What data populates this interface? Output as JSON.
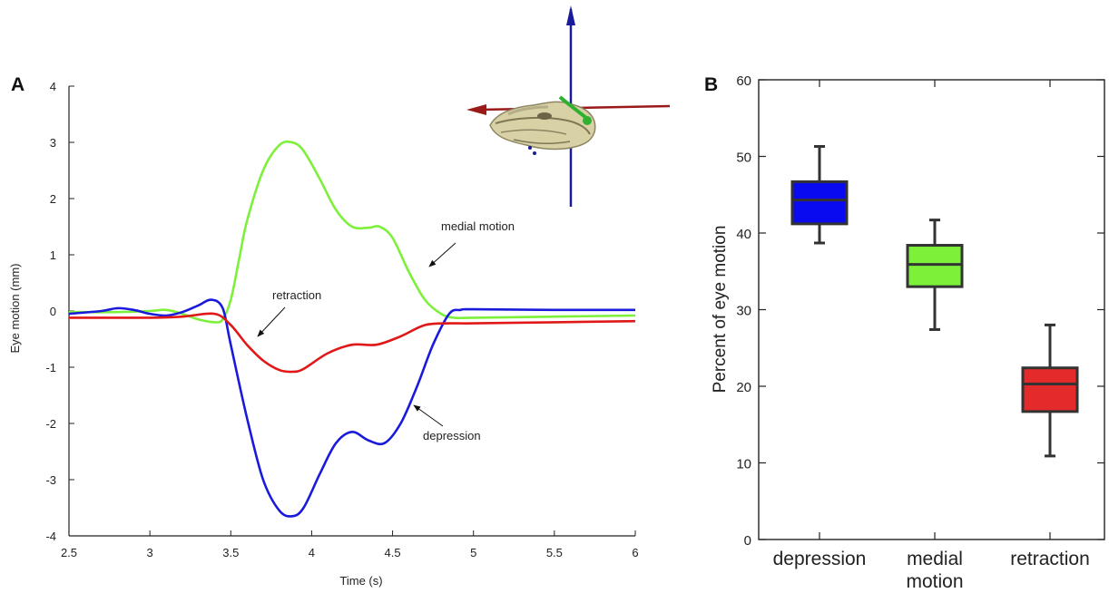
{
  "chart_data": [
    {
      "panel": "A",
      "type": "line",
      "xlabel": "Time (s)",
      "ylabel": "Eye motion (mm)",
      "xlim": [
        2.5,
        6
      ],
      "ylim": [
        -4,
        4
      ],
      "xticks": [
        "2.5",
        "3",
        "3.5",
        "4",
        "4.5",
        "5",
        "5.5",
        "6"
      ],
      "yticks": [
        "4",
        "3",
        "2",
        "1",
        "0",
        "-1",
        "-2",
        "-3",
        "-4"
      ],
      "series": [
        {
          "id": "medial",
          "color": "#7df03a",
          "x": [
            2.5,
            2.8,
            3.0,
            3.1,
            3.2,
            3.3,
            3.4,
            3.45,
            3.5,
            3.55,
            3.6,
            3.7,
            3.8,
            3.88,
            3.95,
            4.05,
            4.15,
            4.25,
            4.35,
            4.42,
            4.5,
            4.6,
            4.7,
            4.8,
            4.88,
            5.0,
            5.5,
            6.0
          ],
          "y": [
            -0.02,
            -0.02,
            0.0,
            0.02,
            -0.05,
            -0.15,
            -0.2,
            -0.15,
            0.2,
            0.9,
            1.6,
            2.5,
            2.95,
            3.0,
            2.85,
            2.35,
            1.8,
            1.5,
            1.48,
            1.5,
            1.3,
            0.7,
            0.2,
            -0.05,
            -0.12,
            -0.12,
            -0.1,
            -0.08
          ]
        },
        {
          "id": "depression",
          "color": "#1a1adc",
          "x": [
            2.5,
            2.7,
            2.8,
            2.9,
            3.0,
            3.1,
            3.2,
            3.3,
            3.38,
            3.45,
            3.5,
            3.6,
            3.7,
            3.8,
            3.88,
            3.95,
            4.05,
            4.15,
            4.25,
            4.35,
            4.45,
            4.55,
            4.65,
            4.75,
            4.85,
            4.92,
            5.0,
            5.5,
            6.0
          ],
          "y": [
            -0.05,
            0.0,
            0.05,
            0.02,
            -0.05,
            -0.08,
            -0.02,
            0.1,
            0.2,
            0.05,
            -0.6,
            -1.9,
            -3.0,
            -3.55,
            -3.65,
            -3.5,
            -2.9,
            -2.35,
            -2.15,
            -2.3,
            -2.35,
            -2.0,
            -1.35,
            -0.6,
            -0.05,
            0.02,
            0.03,
            0.02,
            0.02
          ]
        },
        {
          "id": "retraction",
          "color": "#e01818",
          "x": [
            2.5,
            3.0,
            3.2,
            3.4,
            3.5,
            3.6,
            3.7,
            3.8,
            3.88,
            3.95,
            4.1,
            4.25,
            4.4,
            4.55,
            4.7,
            4.85,
            5.0,
            5.5,
            6.0
          ],
          "y": [
            -0.12,
            -0.12,
            -0.1,
            -0.05,
            -0.25,
            -0.6,
            -0.88,
            -1.05,
            -1.08,
            -1.03,
            -0.75,
            -0.6,
            -0.6,
            -0.45,
            -0.25,
            -0.22,
            -0.22,
            -0.2,
            -0.18
          ]
        }
      ],
      "annotations": {
        "medial": "medial motion",
        "retraction": "retraction",
        "depression": "depression"
      }
    },
    {
      "panel": "B",
      "type": "box",
      "ylabel": "Percent of eye motion",
      "ylim": [
        0,
        60
      ],
      "yticks": [
        "0",
        "10",
        "20",
        "30",
        "40",
        "50",
        "60"
      ],
      "boxes": [
        {
          "label_lines": [
            "depression"
          ],
          "color": "#0a0af0",
          "whisker_low": 38.7,
          "q1": 41.2,
          "median": 44.3,
          "q3": 46.7,
          "whisker_high": 51.3
        },
        {
          "label_lines": [
            "medial",
            "motion"
          ],
          "color": "#7df03a",
          "whisker_low": 27.4,
          "q1": 33.0,
          "median": 35.9,
          "q3": 38.4,
          "whisker_high": 41.7
        },
        {
          "label_lines": [
            "retraction"
          ],
          "color": "#e42a2a",
          "whisker_low": 10.9,
          "q1": 16.7,
          "median": 20.3,
          "q3": 22.4,
          "whisker_high": 28.0
        }
      ]
    }
  ],
  "labels": {
    "panel_a": "A",
    "panel_b": "B"
  }
}
